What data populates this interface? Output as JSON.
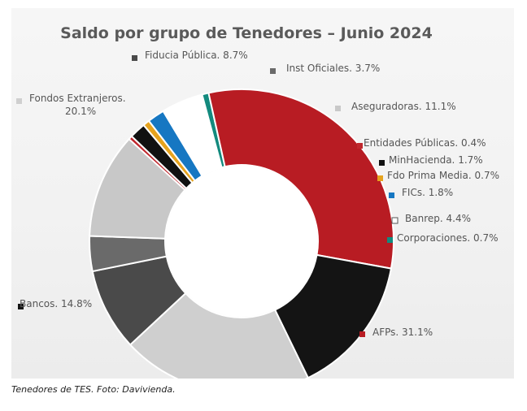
{
  "chart_data": {
    "type": "pie",
    "variant": "donut",
    "title": "Saldo por grupo de Tenedores – Junio 2024",
    "slices": [
      {
        "label": "Fiducia Pública",
        "value": 8.7,
        "display": "8.7%",
        "color": "#4a4a4a"
      },
      {
        "label": "Inst Oficiales",
        "value": 3.7,
        "display": "3.7%",
        "color": "#6a6a6a"
      },
      {
        "label": "Aseguradoras",
        "value": 11.1,
        "display": "11.1%",
        "color": "#c8c8c8"
      },
      {
        "label": "Entidades Públicas",
        "value": 0.4,
        "display": "0.4%",
        "color": "#c0272d"
      },
      {
        "label": "MinHacienda",
        "value": 1.7,
        "display": "1.7%",
        "color": "#111111"
      },
      {
        "label": "Fdo Prima Media",
        "value": 0.7,
        "display": "0.7%",
        "color": "#e6a31e"
      },
      {
        "label": "FICs",
        "value": 1.8,
        "display": "1.8%",
        "color": "#1677c2"
      },
      {
        "label": "Banrep",
        "value": 4.4,
        "display": "4.4%",
        "color": "#ffffff"
      },
      {
        "label": "Corporaciones",
        "value": 0.7,
        "display": "0.7%",
        "color": "#138a7e"
      },
      {
        "label": "AFPs",
        "value": 31.1,
        "display": "31.1%",
        "color": "#b81c23"
      },
      {
        "label": "Bancos",
        "value": 14.8,
        "display": "14.8%",
        "color": "#141414"
      },
      {
        "label": "Fondos Extranjeros",
        "value": 20.1,
        "display": "20.1%",
        "color": "#cfcfcf"
      }
    ]
  },
  "caption": "Tenedores de TES. Foto: Davivienda."
}
